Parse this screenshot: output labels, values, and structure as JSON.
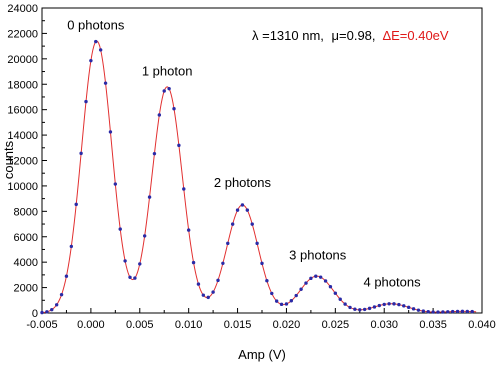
{
  "chart_data": {
    "type": "scatter",
    "xlabel": "Amp (V)",
    "ylabel": "counts",
    "xlim": [
      -0.005,
      0.04
    ],
    "ylim": [
      0,
      24000
    ],
    "x_ticks": [
      "-0.005",
      "0.000",
      "0.005",
      "0.010",
      "0.015",
      "0.020",
      "0.025",
      "0.030",
      "0.035",
      "0.040"
    ],
    "y_ticks": [
      "0",
      "2000",
      "4000",
      "6000",
      "8000",
      "10000",
      "12000",
      "14000",
      "16000",
      "18000",
      "20000",
      "22000",
      "24000"
    ],
    "grid": false,
    "colors": {
      "points": "#2a2aa6",
      "fit": "#e23030",
      "axes": "#000000",
      "highlight": "#e01818"
    },
    "parameters": {
      "lambda": "λ =1310 nm,",
      "mu": "μ=0.98,",
      "delta_e": "ΔE=0.40eV"
    },
    "annotations": [
      {
        "text": "0 photons",
        "x": 0.0005,
        "y": 22300
      },
      {
        "text": "1 photon",
        "x": 0.0078,
        "y": 18700
      },
      {
        "text": "2 photons",
        "x": 0.0155,
        "y": 9900
      },
      {
        "text": "3 photons",
        "x": 0.0232,
        "y": 4200
      },
      {
        "text": "4 photons",
        "x": 0.0308,
        "y": 2100
      }
    ],
    "peaks": [
      {
        "center": 0.0006,
        "height": 21400,
        "sigma": 0.00155
      },
      {
        "center": 0.0078,
        "height": 17800,
        "sigma": 0.00155
      },
      {
        "center": 0.0155,
        "height": 8500,
        "sigma": 0.0016
      },
      {
        "center": 0.0231,
        "height": 2900,
        "sigma": 0.0017
      },
      {
        "center": 0.0307,
        "height": 730,
        "sigma": 0.0018
      },
      {
        "center": 0.038,
        "height": 130,
        "sigma": 0.0018
      }
    ],
    "series": [
      {
        "type": "scatter",
        "x_start": -0.005,
        "x_end": 0.039,
        "x_step": 0.0005
      },
      {
        "type": "line"
      }
    ]
  }
}
